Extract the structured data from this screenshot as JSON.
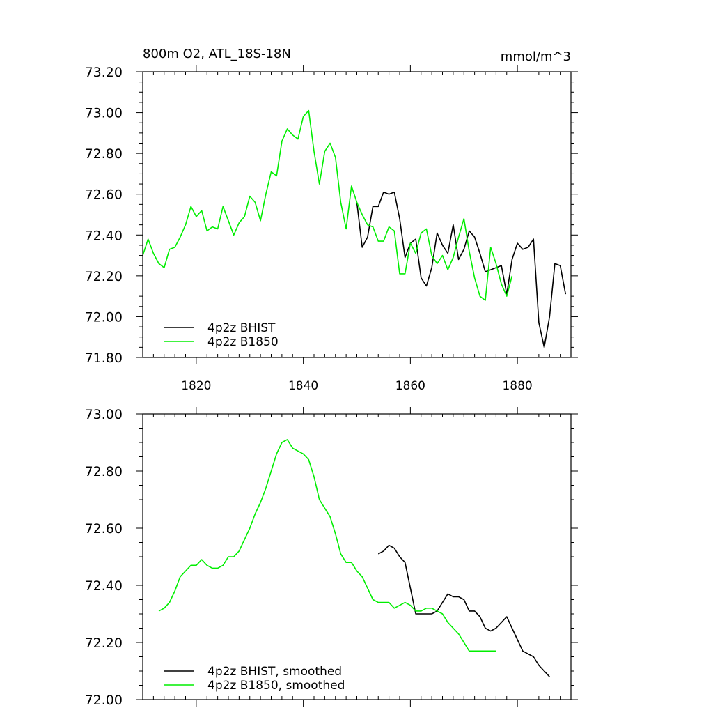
{
  "chart_data": [
    {
      "type": "line",
      "title": "800m O2, ATL_18S-18N",
      "units": "mmol/m^3",
      "xlim": [
        1810,
        1890
      ],
      "ylim": [
        71.8,
        73.2
      ],
      "xticks": [
        1820,
        1840,
        1860,
        1880
      ],
      "xtick_labels": [
        "1820",
        "1840",
        "1860",
        "1880"
      ],
      "yticks": [
        71.8,
        72.0,
        72.2,
        72.4,
        72.6,
        72.8,
        73.0,
        73.2
      ],
      "ytick_labels": [
        "71.80",
        "72.00",
        "72.20",
        "72.40",
        "72.60",
        "72.80",
        "73.00",
        "73.20"
      ],
      "legend_position": "bottom-left",
      "series": [
        {
          "name": "4p2z BHIST",
          "color": "#000000",
          "x": [
            1850,
            1851,
            1852,
            1853,
            1854,
            1855,
            1856,
            1857,
            1858,
            1859,
            1860,
            1861,
            1862,
            1863,
            1864,
            1865,
            1866,
            1867,
            1868,
            1869,
            1870,
            1871,
            1872,
            1873,
            1874,
            1875,
            1876,
            1877,
            1878,
            1879,
            1880,
            1881,
            1882,
            1883,
            1884,
            1885,
            1886,
            1887,
            1888,
            1889
          ],
          "y": [
            72.56,
            72.34,
            72.39,
            72.54,
            72.54,
            72.61,
            72.6,
            72.61,
            72.48,
            72.29,
            72.36,
            72.38,
            72.19,
            72.15,
            72.24,
            72.41,
            72.35,
            72.31,
            72.45,
            72.28,
            72.33,
            72.42,
            72.39,
            72.31,
            72.22,
            72.23,
            72.24,
            72.25,
            72.11,
            72.28,
            72.36,
            72.33,
            72.34,
            72.38,
            71.97,
            71.85,
            72.0,
            72.26,
            72.25,
            72.11
          ]
        },
        {
          "name": "4p2z B1850",
          "color": "#00ee00",
          "x": [
            1810,
            1811,
            1812,
            1813,
            1814,
            1815,
            1816,
            1817,
            1818,
            1819,
            1820,
            1821,
            1822,
            1823,
            1824,
            1825,
            1826,
            1827,
            1828,
            1829,
            1830,
            1831,
            1832,
            1833,
            1834,
            1835,
            1836,
            1837,
            1838,
            1839,
            1840,
            1841,
            1842,
            1843,
            1844,
            1845,
            1846,
            1847,
            1848,
            1849,
            1850,
            1851,
            1852,
            1853,
            1854,
            1855,
            1856,
            1857,
            1858,
            1859,
            1860,
            1861,
            1862,
            1863,
            1864,
            1865,
            1866,
            1867,
            1868,
            1869,
            1870,
            1871,
            1872,
            1873,
            1874,
            1875,
            1876,
            1877,
            1878,
            1879
          ],
          "y": [
            72.3,
            72.38,
            72.31,
            72.26,
            72.24,
            72.33,
            72.34,
            72.39,
            72.45,
            72.54,
            72.49,
            72.52,
            72.42,
            72.44,
            72.43,
            72.54,
            72.47,
            72.4,
            72.46,
            72.49,
            72.59,
            72.56,
            72.47,
            72.6,
            72.71,
            72.69,
            72.86,
            72.92,
            72.89,
            72.87,
            72.98,
            73.01,
            72.81,
            72.65,
            72.81,
            72.85,
            72.78,
            72.56,
            72.43,
            72.64,
            72.56,
            72.5,
            72.45,
            72.44,
            72.37,
            72.37,
            72.44,
            72.42,
            72.21,
            72.21,
            72.36,
            72.31,
            72.41,
            72.43,
            72.3,
            72.26,
            72.3,
            72.23,
            72.29,
            72.39,
            72.48,
            72.32,
            72.19,
            72.1,
            72.08,
            72.34,
            72.26,
            72.16,
            72.1,
            72.2
          ]
        }
      ]
    },
    {
      "type": "line",
      "title": "",
      "xlim": [
        1810,
        1890
      ],
      "ylim": [
        72.0,
        73.0
      ],
      "xticks": [
        1820,
        1840,
        1860,
        1880
      ],
      "xtick_labels": [],
      "yticks": [
        72.0,
        72.2,
        72.4,
        72.6,
        72.8,
        73.0
      ],
      "ytick_labels": [
        "72.00",
        "72.20",
        "72.40",
        "72.60",
        "72.80",
        "73.00"
      ],
      "legend_position": "bottom-left",
      "series": [
        {
          "name": "4p2z BHIST, smoothed",
          "color": "#000000",
          "x": [
            1854,
            1855,
            1856,
            1857,
            1858,
            1859,
            1860,
            1861,
            1862,
            1863,
            1864,
            1865,
            1866,
            1867,
            1868,
            1869,
            1870,
            1871,
            1872,
            1873,
            1874,
            1875,
            1876,
            1877,
            1878,
            1879,
            1880,
            1881,
            1882,
            1883,
            1884,
            1885,
            1886
          ],
          "y": [
            72.51,
            72.52,
            72.54,
            72.53,
            72.5,
            72.48,
            72.39,
            72.3,
            72.3,
            72.3,
            72.3,
            72.31,
            72.34,
            72.37,
            72.36,
            72.36,
            72.35,
            72.31,
            72.31,
            72.29,
            72.25,
            72.24,
            72.25,
            72.27,
            72.29,
            72.25,
            72.21,
            72.17,
            72.16,
            72.15,
            72.12,
            72.1,
            72.08
          ]
        },
        {
          "name": "4p2z B1850, smoothed",
          "color": "#00ee00",
          "x": [
            1813,
            1814,
            1815,
            1816,
            1817,
            1818,
            1819,
            1820,
            1821,
            1822,
            1823,
            1824,
            1825,
            1826,
            1827,
            1828,
            1829,
            1830,
            1831,
            1832,
            1833,
            1834,
            1835,
            1836,
            1837,
            1838,
            1839,
            1840,
            1841,
            1842,
            1843,
            1844,
            1845,
            1846,
            1847,
            1848,
            1849,
            1850,
            1851,
            1852,
            1853,
            1854,
            1855,
            1856,
            1857,
            1858,
            1859,
            1860,
            1861,
            1862,
            1863,
            1864,
            1865,
            1866,
            1867,
            1868,
            1869,
            1870,
            1871,
            1872,
            1873,
            1874,
            1875,
            1876
          ],
          "y": [
            72.31,
            72.32,
            72.34,
            72.38,
            72.43,
            72.45,
            72.47,
            72.47,
            72.49,
            72.47,
            72.46,
            72.46,
            72.47,
            72.5,
            72.5,
            72.52,
            72.56,
            72.6,
            72.65,
            72.69,
            72.74,
            72.8,
            72.86,
            72.9,
            72.91,
            72.88,
            72.87,
            72.86,
            72.84,
            72.78,
            72.7,
            72.67,
            72.64,
            72.58,
            72.51,
            72.48,
            72.48,
            72.45,
            72.43,
            72.39,
            72.35,
            72.34,
            72.34,
            72.34,
            72.32,
            72.33,
            72.34,
            72.33,
            72.31,
            72.31,
            72.32,
            72.32,
            72.31,
            72.3,
            72.27,
            72.25,
            72.23,
            72.2,
            72.17,
            72.17,
            72.17,
            72.17,
            72.17,
            72.17
          ]
        }
      ]
    }
  ]
}
